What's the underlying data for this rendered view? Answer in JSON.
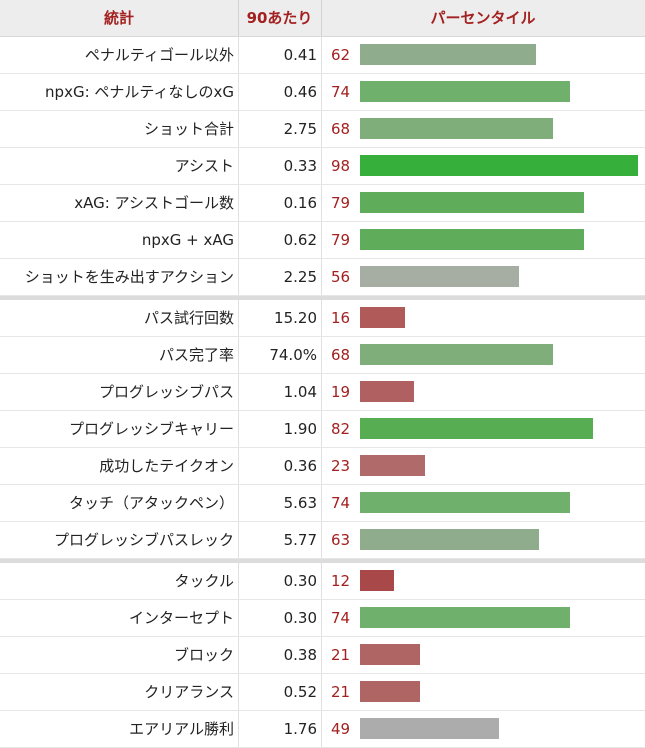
{
  "header": {
    "stat": "統計",
    "per90": "90あたり",
    "percentile": "パーセンタイル"
  },
  "groups": [
    [
      {
        "stat": "ペナルティゴール以外",
        "per90": "0.41",
        "pct": 62,
        "color": "#8fac8c"
      },
      {
        "stat": "npxG: ペナルティなしのxG",
        "per90": "0.46",
        "pct": 74,
        "color": "#6fb06c"
      },
      {
        "stat": "ショット合計",
        "per90": "2.75",
        "pct": 68,
        "color": "#7fae7b"
      },
      {
        "stat": "アシスト",
        "per90": "0.33",
        "pct": 98,
        "color": "#36b03a"
      },
      {
        "stat": "xAG: アシストゴール数",
        "per90": "0.16",
        "pct": 79,
        "color": "#5fad5b"
      },
      {
        "stat": "npxG + xAG",
        "per90": "0.62",
        "pct": 79,
        "color": "#5fad5b"
      },
      {
        "stat": "ショットを生み出すアクション",
        "per90": "2.25",
        "pct": 56,
        "color": "#a6aea4"
      }
    ],
    [
      {
        "stat": "パス試行回数",
        "per90": "15.20",
        "pct": 16,
        "color": "#b05a5a"
      },
      {
        "stat": "パス完了率",
        "per90": "74.0%",
        "pct": 68,
        "color": "#7fae7b"
      },
      {
        "stat": "プログレッシブパス",
        "per90": "1.04",
        "pct": 19,
        "color": "#b06060"
      },
      {
        "stat": "プログレッシブキャリー",
        "per90": "1.90",
        "pct": 82,
        "color": "#56ad52"
      },
      {
        "stat": "成功したテイクオン",
        "per90": "0.36",
        "pct": 23,
        "color": "#b06a6a"
      },
      {
        "stat": "タッチ（アタックペン）",
        "per90": "5.63",
        "pct": 74,
        "color": "#6fb06c"
      },
      {
        "stat": "プログレッシブパスレック",
        "per90": "5.77",
        "pct": 63,
        "color": "#8fac8c"
      }
    ],
    [
      {
        "stat": "タックル",
        "per90": "0.30",
        "pct": 12,
        "color": "#a84848"
      },
      {
        "stat": "インターセプト",
        "per90": "0.30",
        "pct": 74,
        "color": "#6fb06c"
      },
      {
        "stat": "ブロック",
        "per90": "0.38",
        "pct": 21,
        "color": "#b06565"
      },
      {
        "stat": "クリアランス",
        "per90": "0.52",
        "pct": 21,
        "color": "#b06565"
      },
      {
        "stat": "エアリアル勝利",
        "per90": "1.76",
        "pct": 49,
        "color": "#acacac"
      }
    ]
  ]
}
